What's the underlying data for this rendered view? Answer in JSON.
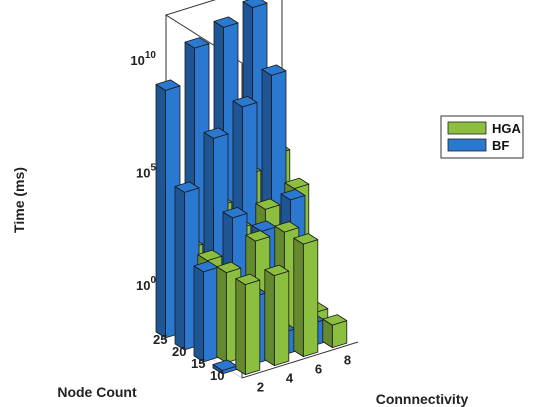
{
  "chart_data": {
    "type": "bar3d",
    "title": "",
    "zlabel": "Time (ms)",
    "xlabel": "Connnectivity",
    "ylabel": "Node Count",
    "zscale": "log",
    "zlim_exp": [
      -2,
      12
    ],
    "z_ticks": [
      {
        "value": 1,
        "base": "10",
        "exp": "0"
      },
      {
        "value": 100000,
        "base": "10",
        "exp": "5"
      },
      {
        "value": 10000000000,
        "base": "10",
        "exp": "10"
      }
    ],
    "connectivity_ticks": [
      "2",
      "4",
      "6",
      "8"
    ],
    "node_count_ticks": [
      "10",
      "15",
      "20",
      "25"
    ],
    "legend": [
      {
        "name": "HGA",
        "color": "#8cbf3f"
      },
      {
        "name": "BF",
        "color": "#2a78cf"
      }
    ],
    "legend_position": "right",
    "grid": false,
    "series": [
      {
        "name": "HGA",
        "points": [
          {
            "connectivity": 2,
            "node_count": 25,
            "value": 100
          },
          {
            "connectivity": 2,
            "node_count": 20,
            "value": 100
          },
          {
            "connectivity": 2,
            "node_count": 15,
            "value": 100
          },
          {
            "connectivity": 2,
            "node_count": 10,
            "value": 100
          },
          {
            "connectivity": 4,
            "node_count": 25,
            "value": 3000
          },
          {
            "connectivity": 4,
            "node_count": 20,
            "value": 1000
          },
          {
            "connectivity": 4,
            "node_count": 15,
            "value": 1000
          },
          {
            "connectivity": 4,
            "node_count": 10,
            "value": 100
          },
          {
            "connectivity": 6,
            "node_count": 25,
            "value": 30000
          },
          {
            "connectivity": 6,
            "node_count": 20,
            "value": 3000
          },
          {
            "connectivity": 6,
            "node_count": 15,
            "value": 1000
          },
          {
            "connectivity": 6,
            "node_count": 10,
            "value": 1000
          },
          {
            "connectivity": 8,
            "node_count": 25,
            "value": 100000
          },
          {
            "connectivity": 8,
            "node_count": 20,
            "value": 10000
          },
          {
            "connectivity": 8,
            "node_count": 15,
            "value": 0.1
          },
          {
            "connectivity": 8,
            "node_count": 10,
            "value": 0.1
          }
        ]
      },
      {
        "name": "BF",
        "points": [
          {
            "connectivity": 2,
            "node_count": 25,
            "value": 1000000000
          },
          {
            "connectivity": 2,
            "node_count": 20,
            "value": 100000
          },
          {
            "connectivity": 2,
            "node_count": 15,
            "value": 100
          },
          {
            "connectivity": 2,
            "node_count": 10,
            "value": 0.01
          },
          {
            "connectivity": 4,
            "node_count": 25,
            "value": 30000000000
          },
          {
            "connectivity": 4,
            "node_count": 20,
            "value": 10000000
          },
          {
            "connectivity": 4,
            "node_count": 15,
            "value": 10000
          },
          {
            "connectivity": 4,
            "node_count": 10,
            "value": 10
          },
          {
            "connectivity": 6,
            "node_count": 25,
            "value": 100000000000
          },
          {
            "connectivity": 6,
            "node_count": 20,
            "value": 100000000
          },
          {
            "connectivity": 6,
            "node_count": 15,
            "value": 1000
          },
          {
            "connectivity": 6,
            "node_count": 10,
            "value": 0.1
          },
          {
            "connectivity": 8,
            "node_count": 25,
            "value": 300000000000
          },
          {
            "connectivity": 8,
            "node_count": 20,
            "value": 1000000000
          },
          {
            "connectivity": 8,
            "node_count": 15,
            "value": 10000
          },
          {
            "connectivity": 8,
            "node_count": 10,
            "value": 0.1
          }
        ]
      }
    ]
  }
}
